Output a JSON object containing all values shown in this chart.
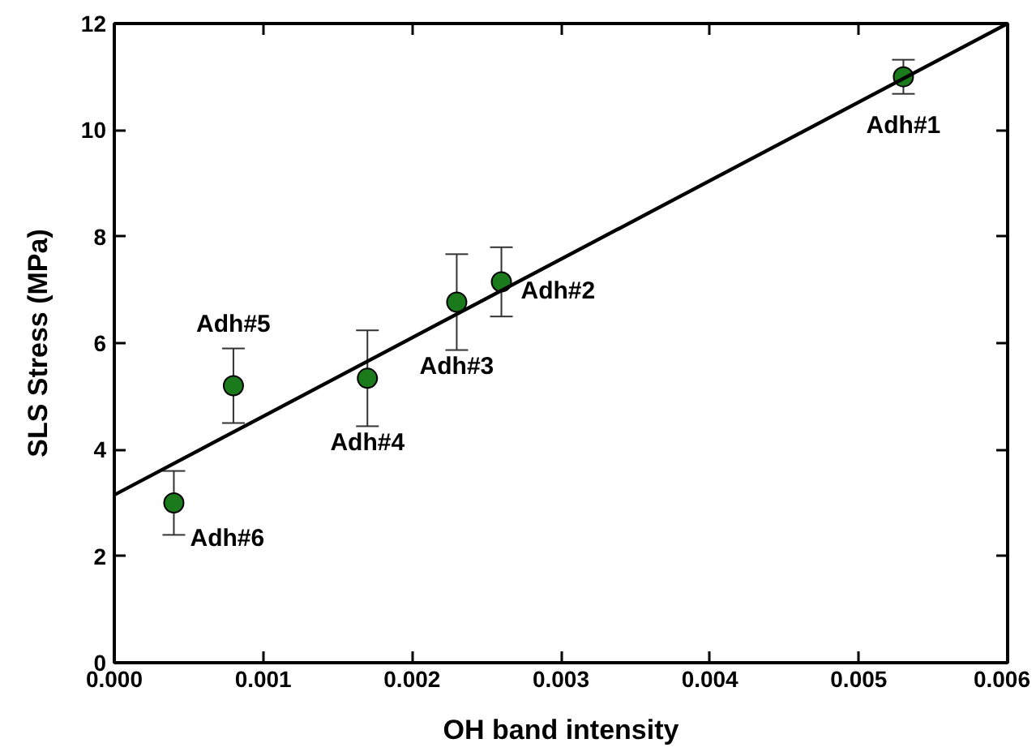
{
  "chart_data": {
    "type": "scatter",
    "xlabel": "OH band intensity",
    "ylabel": "SLS Stress (MPa)",
    "xlim": [
      0,
      0.006
    ],
    "ylim": [
      0,
      12
    ],
    "xticks": [
      {
        "value": 0,
        "label": "0.000"
      },
      {
        "value": 0.001,
        "label": "0.001"
      },
      {
        "value": 0.002,
        "label": "0.002"
      },
      {
        "value": 0.003,
        "label": "0.003"
      },
      {
        "value": 0.004,
        "label": "0.004"
      },
      {
        "value": 0.005,
        "label": "0.005"
      },
      {
        "value": 0.006,
        "label": "0.006"
      }
    ],
    "yticks": [
      0,
      2,
      4,
      6,
      8,
      10,
      12
    ],
    "grid": false,
    "series": [
      {
        "marker": "circle",
        "color": "#1b7a1b",
        "x": [
          0.0053,
          0.0026,
          0.0023,
          0.0017,
          0.0008,
          0.0004
        ],
        "values": [
          11.0,
          7.15,
          6.77,
          5.34,
          5.2,
          3.0
        ],
        "errors": [
          0.32,
          0.65,
          0.9,
          0.9,
          0.7,
          0.6
        ]
      },
      {
        "type": "line",
        "color": "#000000",
        "x": [
          0,
          0.006
        ],
        "values": [
          3.15,
          12.0
        ],
        "line_style": "solid"
      }
    ],
    "annotations": [
      {
        "text": "Adh#1",
        "x": 0.0053,
        "y": 11.0
      },
      {
        "text": "Adh#2",
        "x": 0.0026,
        "y": 7.15
      },
      {
        "text": "Adh#3",
        "x": 0.0023,
        "y": 6.77
      },
      {
        "text": "Adh#4",
        "x": 0.0017,
        "y": 5.34
      },
      {
        "text": "Adh#5",
        "x": 0.0008,
        "y": 5.2
      },
      {
        "text": "Adh#6",
        "x": 0.0004,
        "y": 3.0
      }
    ]
  }
}
